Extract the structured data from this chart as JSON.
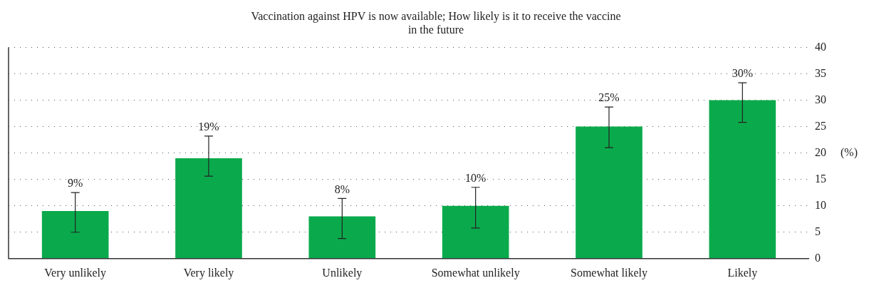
{
  "chart_data": {
    "type": "bar",
    "title": "Vaccination against HPV is now available; How likely is it to receive the vaccine\nin the future",
    "ylabel": "(%)",
    "categories": [
      "Very unlikely",
      "Very likely",
      "Unlikely",
      "Somewhat unlikely",
      "Somewhat likely",
      "Likely"
    ],
    "values": [
      9,
      19,
      8,
      10,
      25,
      30
    ],
    "value_labels": [
      "9%",
      "19%",
      "8%",
      "10%",
      "25%",
      "30%"
    ],
    "errors": [
      [
        5,
        12.5
      ],
      [
        15.6,
        23.2
      ],
      [
        3.8,
        11.4
      ],
      [
        5.8,
        13.5
      ],
      [
        21,
        28.7
      ],
      [
        25.8,
        33.3
      ]
    ],
    "color": "#0aaa4c",
    "ylim": [
      0,
      40
    ],
    "yticks": [
      0,
      5,
      10,
      15,
      20,
      25,
      30,
      35,
      40
    ],
    "grid": "y",
    "legend": false
  }
}
